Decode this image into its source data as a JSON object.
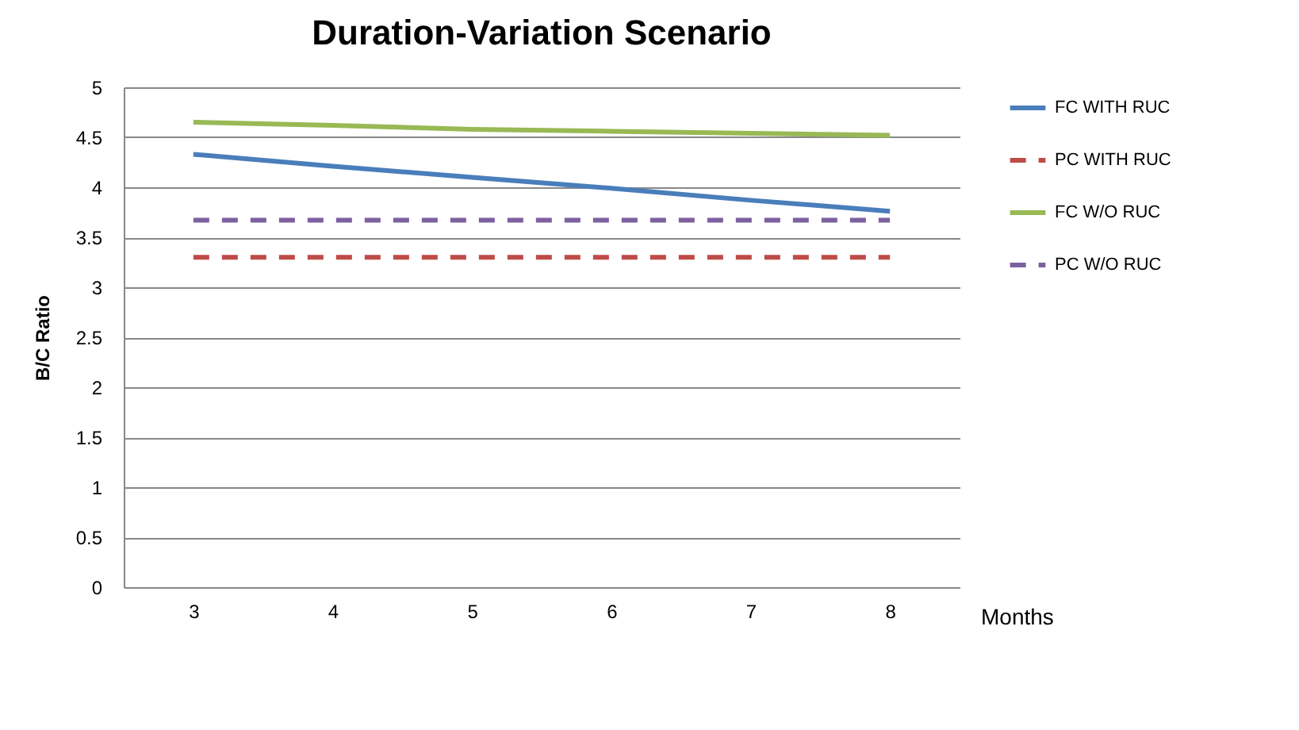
{
  "chart_data": {
    "type": "line",
    "title": "Duration-Variation Scenario",
    "xlabel": "Months",
    "ylabel": "B/C Ratio",
    "categories": [
      "3",
      "4",
      "5",
      "6",
      "7",
      "8"
    ],
    "series": [
      {
        "name": "FC WITH RUC",
        "color": "#4a7ebb",
        "line_style": "solid",
        "values": [
          4.33,
          4.21,
          4.1,
          3.99,
          3.87,
          3.76
        ]
      },
      {
        "name": "PC WITH RUC",
        "color": "#be4b48",
        "line_style": "dashed",
        "values": [
          3.3,
          3.3,
          3.3,
          3.3,
          3.3,
          3.3
        ]
      },
      {
        "name": "FC W/O RUC",
        "color": "#98b954",
        "line_style": "solid",
        "values": [
          4.65,
          4.62,
          4.58,
          4.56,
          4.54,
          4.52
        ]
      },
      {
        "name": "PC W/O RUC",
        "color": "#7d60a0",
        "line_style": "dashed",
        "values": [
          3.67,
          3.67,
          3.67,
          3.67,
          3.67,
          3.67
        ]
      }
    ],
    "ylim": [
      0,
      5
    ],
    "yticks": [
      0,
      0.5,
      1,
      1.5,
      2,
      2.5,
      3,
      3.5,
      4,
      4.5,
      5
    ],
    "grid": "y",
    "legend": "right",
    "marker": "none"
  }
}
